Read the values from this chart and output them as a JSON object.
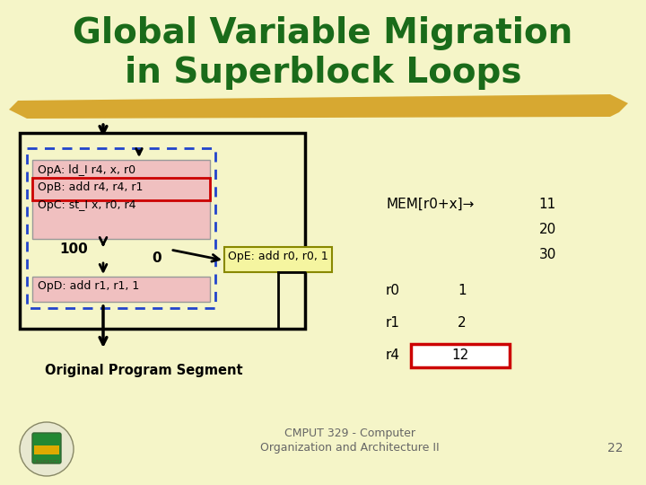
{
  "title_line1": "Global Variable Migration",
  "title_line2": "in Superblock Loops",
  "title_color": "#1a6b1a",
  "bg_color": "#f5f5c8",
  "pink_color": "#f0c0c0",
  "red_border_color": "#cc0000",
  "blue_dash_color": "#2244cc",
  "yellow_box_color": "#f5f5a0",
  "op_a": "OpA: ld_I r4, x, r0",
  "op_b": "OpB: add r4, r4, r1",
  "op_c": "OpC: st_I x, r0, r4",
  "op_d": "OpD: add r1, r1, 1",
  "op_e": "OpE: add r0, r0, 1",
  "label_100": "100",
  "label_0": "0",
  "mem_label": "MEM[r0+x]→",
  "mem_values": [
    "11",
    "20",
    "30"
  ],
  "r0_label": "r0",
  "r0_value": "1",
  "r1_label": "r1",
  "r1_value": "2",
  "r4_label": "r4",
  "r4_value": "12",
  "footer_line1": "CMPUT 329 - Computer",
  "footer_line2": "Organization and Architecture II",
  "page_num": "22",
  "orig_label": "Original Program Segment",
  "gold_color": "#d4a020"
}
